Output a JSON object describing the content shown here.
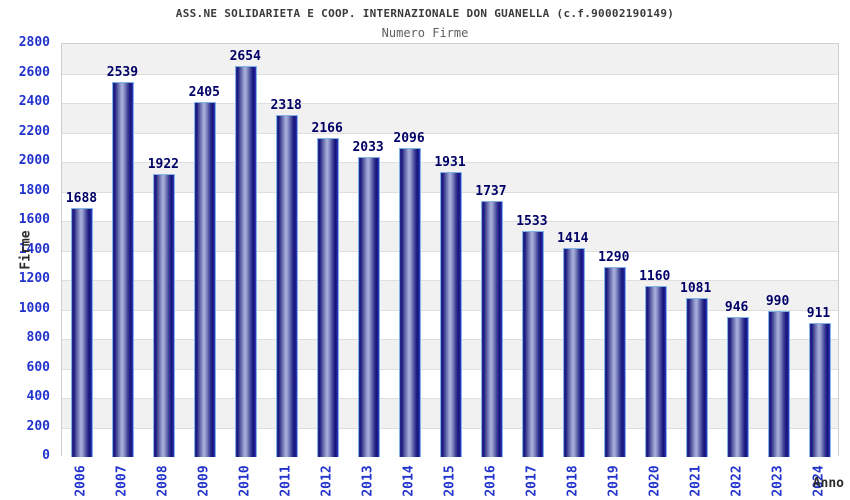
{
  "chart_data": {
    "type": "bar",
    "title": "ASS.NE SOLIDARIETA E COOP. INTERNAZIONALE DON GUANELLA (c.f.90002190149)",
    "subtitle": "Numero Firme",
    "xlabel": "Anno",
    "ylabel": "Firme",
    "categories": [
      "2006",
      "2007",
      "2008",
      "2009",
      "2010",
      "2011",
      "2012",
      "2013",
      "2014",
      "2015",
      "2016",
      "2017",
      "2018",
      "2019",
      "2020",
      "2021",
      "2022",
      "2023",
      "2024"
    ],
    "values": [
      1688,
      2539,
      1922,
      2405,
      2654,
      2318,
      2166,
      2033,
      2096,
      1931,
      1737,
      1533,
      1414,
      1290,
      1160,
      1081,
      946,
      990,
      911
    ],
    "ylim": [
      0,
      2800
    ],
    "ytick_step": 200,
    "grid": true,
    "legend": false,
    "colors": {
      "bar_dark": "#15157b",
      "bar_highlight": "#aab1da",
      "bar_border": "#7fb3e6",
      "value_label": "#000066",
      "tick_label": "#2233cc",
      "axis_title": "#2b2b2b",
      "title_text": "#3a3a3a",
      "subtitle_text": "#5f5f5f",
      "band_gray": "#f1f1f1",
      "band_white": "#ffffff",
      "gridline": "#dedede",
      "plot_border": "#cfcfcf",
      "baseline": "#a9a9a9"
    }
  }
}
